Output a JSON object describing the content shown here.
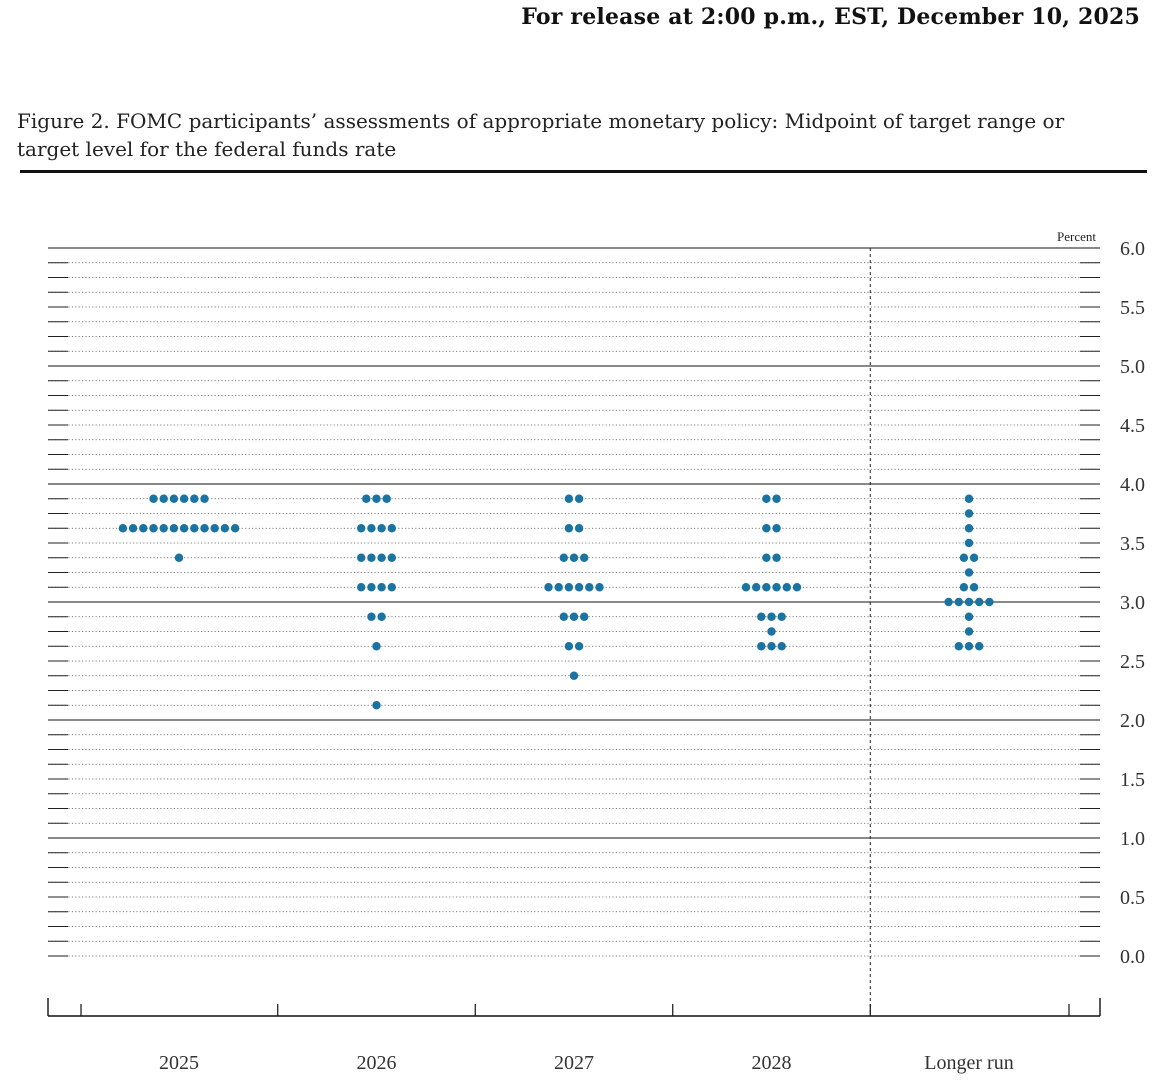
{
  "header": {
    "release": "For release at 2:00 p.m., EST, December 10, 2025",
    "figure_title": "Figure 2. FOMC participants’ assessments of appropriate monetary policy: Midpoint of target range or target level for the federal funds rate"
  },
  "chart_data": {
    "type": "scatter",
    "subtype": "dot-plot",
    "ylabel": "Percent",
    "ylim": [
      0.0,
      6.0
    ],
    "yticks": [
      "0.0",
      "0.5",
      "1.0",
      "1.5",
      "2.0",
      "2.5",
      "3.0",
      "3.5",
      "4.0",
      "4.5",
      "5.0",
      "5.5",
      "6.0"
    ],
    "minor_gridlines": "every 0.125 dotted",
    "categories": [
      "2025",
      "2026",
      "2027",
      "2028",
      "Longer run"
    ],
    "dot_color": "#1a73a0",
    "dots": [
      {
        "category": "2025",
        "counts": [
          {
            "y": 3.875,
            "n": 6
          },
          {
            "y": 3.625,
            "n": 12
          },
          {
            "y": 3.375,
            "n": 1
          }
        ]
      },
      {
        "category": "2026",
        "counts": [
          {
            "y": 3.875,
            "n": 3
          },
          {
            "y": 3.625,
            "n": 4
          },
          {
            "y": 3.375,
            "n": 4
          },
          {
            "y": 3.125,
            "n": 4
          },
          {
            "y": 2.875,
            "n": 2
          },
          {
            "y": 2.625,
            "n": 1
          },
          {
            "y": 2.125,
            "n": 1
          }
        ]
      },
      {
        "category": "2027",
        "counts": [
          {
            "y": 3.875,
            "n": 2
          },
          {
            "y": 3.625,
            "n": 2
          },
          {
            "y": 3.375,
            "n": 3
          },
          {
            "y": 3.125,
            "n": 6
          },
          {
            "y": 2.875,
            "n": 3
          },
          {
            "y": 2.625,
            "n": 2
          },
          {
            "y": 2.375,
            "n": 1
          }
        ]
      },
      {
        "category": "2028",
        "counts": [
          {
            "y": 3.875,
            "n": 2
          },
          {
            "y": 3.625,
            "n": 2
          },
          {
            "y": 3.375,
            "n": 2
          },
          {
            "y": 3.125,
            "n": 6
          },
          {
            "y": 2.875,
            "n": 3
          },
          {
            "y": 2.75,
            "n": 1
          },
          {
            "y": 2.625,
            "n": 3
          }
        ]
      },
      {
        "category": "Longer run",
        "counts": [
          {
            "y": 3.875,
            "n": 1
          },
          {
            "y": 3.75,
            "n": 1
          },
          {
            "y": 3.625,
            "n": 1
          },
          {
            "y": 3.5,
            "n": 1
          },
          {
            "y": 3.375,
            "n": 2
          },
          {
            "y": 3.25,
            "n": 1
          },
          {
            "y": 3.125,
            "n": 2
          },
          {
            "y": 3.0,
            "n": 5
          },
          {
            "y": 2.875,
            "n": 1
          },
          {
            "y": 2.75,
            "n": 1
          },
          {
            "y": 2.625,
            "n": 3
          }
        ]
      }
    ],
    "separator_before": "Longer run",
    "grid": true
  }
}
